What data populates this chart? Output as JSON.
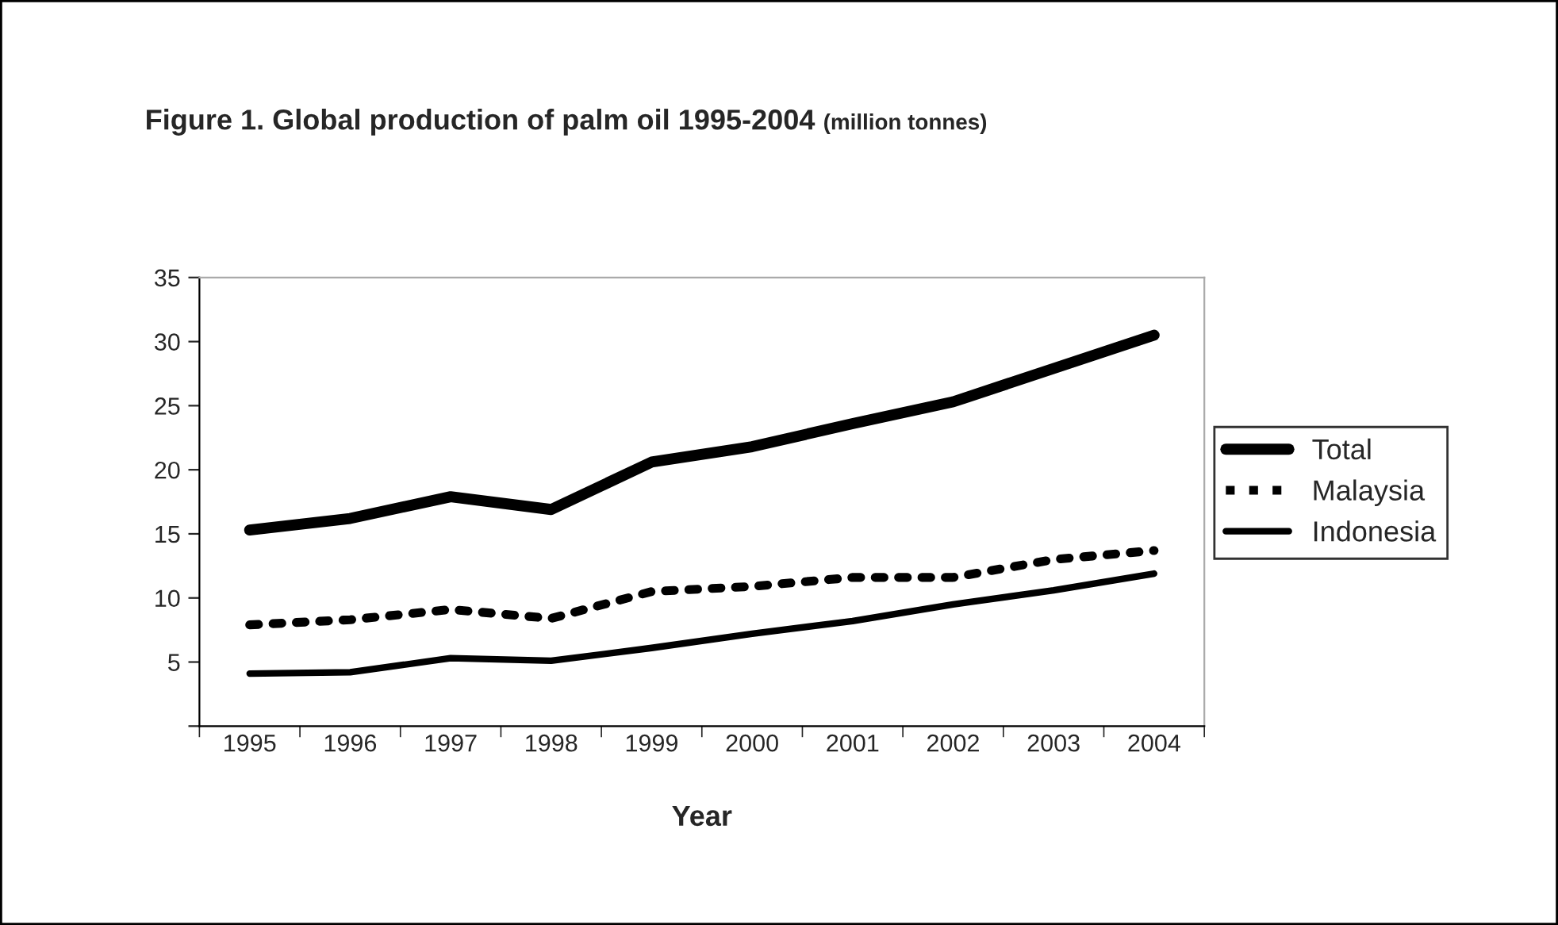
{
  "chart_data": {
    "type": "line",
    "title": "Figure 1. Global production of palm oil 1995-2004",
    "subtitle": "(million tonnes)",
    "xlabel": "Year",
    "categories": [
      "1995",
      "1996",
      "1997",
      "1998",
      "1999",
      "2000",
      "2001",
      "2002",
      "2003",
      "2004"
    ],
    "series": [
      {
        "name": "Total",
        "color": "#000000",
        "line_style": "solid",
        "values": [
          15.3,
          16.2,
          17.9,
          16.9,
          20.6,
          21.8,
          23.6,
          25.3,
          27.9,
          30.5
        ]
      },
      {
        "name": "Malaysia",
        "color": "#000000",
        "line_style": "dotted",
        "values": [
          7.9,
          8.3,
          9.1,
          8.4,
          10.5,
          10.9,
          11.6,
          11.6,
          13.0,
          13.7
        ]
      },
      {
        "name": "Indonesia",
        "color": "#000000",
        "line_style": "solid",
        "values": [
          4.1,
          4.2,
          5.3,
          5.1,
          6.1,
          7.2,
          8.2,
          9.5,
          10.6,
          11.9
        ]
      }
    ],
    "ylim": [
      0,
      35
    ],
    "yticks": [
      {
        "value": 0,
        "label": null
      },
      5,
      10,
      15,
      20,
      25,
      30,
      35
    ],
    "grid": false,
    "legend": "right"
  }
}
